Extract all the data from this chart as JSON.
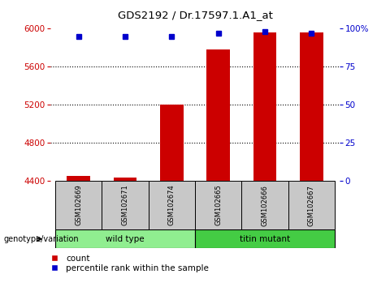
{
  "title": "GDS2192 / Dr.17597.1.A1_at",
  "samples": [
    "GSM102669",
    "GSM102671",
    "GSM102674",
    "GSM102665",
    "GSM102666",
    "GSM102667"
  ],
  "counts": [
    4455,
    4432,
    5205,
    5780,
    5960,
    5960
  ],
  "percentiles": [
    95,
    95,
    95,
    97,
    98,
    97
  ],
  "ymin": 4400,
  "ymax": 6000,
  "yticks": [
    4400,
    4800,
    5200,
    5600,
    6000
  ],
  "y2ticks": [
    0,
    25,
    50,
    75,
    100
  ],
  "bar_color": "#CC0000",
  "blue_color": "#0000CC",
  "bar_width": 0.5,
  "legend_count_label": "count",
  "legend_pct_label": "percentile rank within the sample",
  "left_color": "#CC0000",
  "right_color": "#0000CC",
  "wt_color": "#90EE90",
  "mut_color": "#44CC44",
  "gray_color": "#C8C8C8"
}
